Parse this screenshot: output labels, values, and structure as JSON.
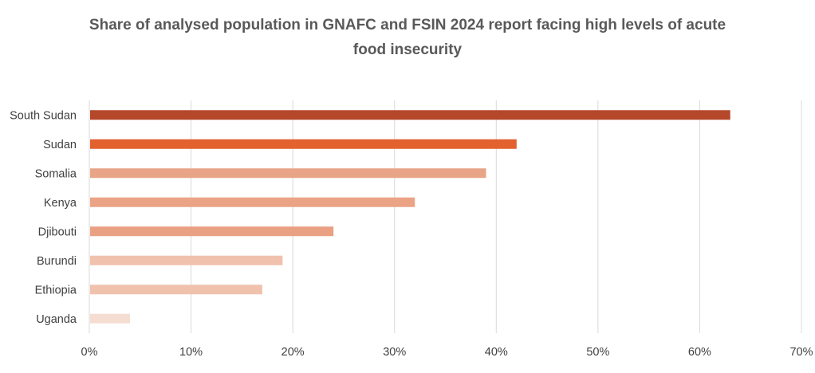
{
  "chart_data": {
    "type": "bar",
    "orientation": "horizontal",
    "title_line1": "Share of analysed population in GNAFC and FSIN 2024 report facing high levels of acute",
    "title_line2": "food insecurity",
    "categories": [
      "South Sudan",
      "Sudan",
      "Somalia",
      "Kenya",
      "Djibouti",
      "Burundi",
      "Ethiopia",
      "Uganda"
    ],
    "values": [
      63,
      42,
      39,
      32,
      24,
      19,
      17,
      4
    ],
    "colors": [
      "#b5472a",
      "#e2612f",
      "#e8a486",
      "#eba385",
      "#e9a083",
      "#f0c2ad",
      "#f0c2ad",
      "#f5ddd2"
    ],
    "xlim": [
      0,
      70
    ],
    "x_ticks": [
      "0%",
      "10%",
      "20%",
      "30%",
      "40%",
      "50%",
      "60%",
      "70%"
    ],
    "grid": true,
    "legend": "none"
  }
}
